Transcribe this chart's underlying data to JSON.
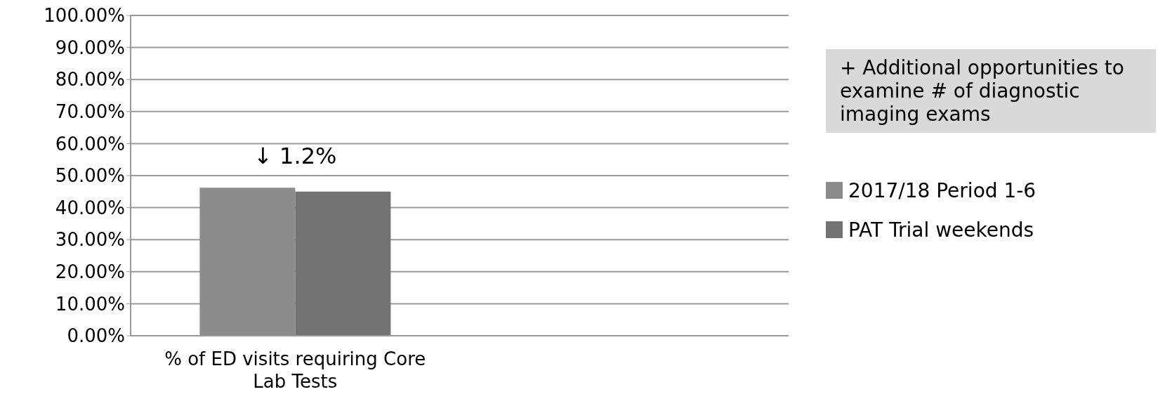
{
  "chart_data": {
    "type": "bar",
    "categories": [
      "% of ED visits requiring Core Lab Tests",
      null
    ],
    "series": [
      {
        "name": "2017/18 Period 1-6",
        "color": "#8c8c8c",
        "values": [
          46.2,
          null
        ]
      },
      {
        "name": "PAT Trial weekends",
        "color": "#737373",
        "values": [
          45.0,
          null
        ]
      }
    ],
    "ylim": [
      0,
      100
    ],
    "yticks": [
      {
        "value": 0,
        "label": "0.00%"
      },
      {
        "value": 10,
        "label": "10.00%"
      },
      {
        "value": 20,
        "label": "20.00%"
      },
      {
        "value": 30,
        "label": "30.00%"
      },
      {
        "value": 40,
        "label": "40.00%"
      },
      {
        "value": 50,
        "label": "50.00%"
      },
      {
        "value": 60,
        "label": "60.00%"
      },
      {
        "value": 70,
        "label": "70.00%"
      },
      {
        "value": 80,
        "label": "80.00%"
      },
      {
        "value": 90,
        "label": "90.00%"
      },
      {
        "value": 100,
        "label": "100.00%"
      }
    ],
    "grid": "y",
    "legend": "right",
    "annotations": [
      "↓ 1.2%",
      "+ Additional opportunities to examine # of diagnostic imaging exams"
    ]
  }
}
